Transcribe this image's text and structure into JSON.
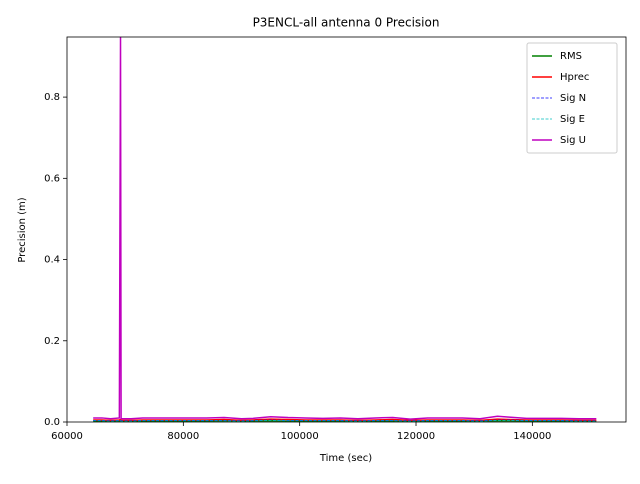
{
  "chart_data": {
    "type": "line",
    "title": "P3ENCL-all antenna 0 Precision",
    "x_label": "Time (sec)",
    "y_label": "Precision (m)",
    "x": [
      64500,
      66000,
      67500,
      69000,
      69200,
      69300,
      71000,
      73000,
      76000,
      80000,
      84000,
      87000,
      90000,
      92000,
      95000,
      98000,
      101000,
      104000,
      107000,
      110000,
      113000,
      116000,
      119000,
      122000,
      125000,
      128000,
      131000,
      134000,
      136000,
      139000,
      142000,
      145000,
      148000,
      151000
    ],
    "series": [
      {
        "name": "RMS",
        "color": "#008000",
        "linestyle": "solid",
        "values": [
          0.002,
          0.002,
          0.001,
          0.002,
          0.003,
          0.002,
          0.002,
          0.002,
          0.002,
          0.002,
          0.002,
          0.003,
          0.002,
          0.002,
          0.003,
          0.002,
          0.002,
          0.002,
          0.002,
          0.001,
          0.002,
          0.002,
          0.001,
          0.002,
          0.002,
          0.002,
          0.002,
          0.003,
          0.003,
          0.002,
          0.002,
          0.002,
          0.002,
          0.002
        ]
      },
      {
        "name": "Hprec",
        "color": "#ff0000",
        "linestyle": "solid",
        "values": [
          0.005,
          0.005,
          0.004,
          0.005,
          0.006,
          0.004,
          0.004,
          0.005,
          0.005,
          0.005,
          0.005,
          0.006,
          0.004,
          0.005,
          0.007,
          0.006,
          0.005,
          0.005,
          0.005,
          0.004,
          0.005,
          0.006,
          0.004,
          0.005,
          0.005,
          0.005,
          0.004,
          0.007,
          0.006,
          0.005,
          0.005,
          0.005,
          0.004,
          0.004
        ]
      },
      {
        "name": "Sig N",
        "color": "#0000ff",
        "linestyle": "dashed",
        "values": [
          0.004,
          0.004,
          0.003,
          0.004,
          0.004,
          0.003,
          0.003,
          0.004,
          0.004,
          0.004,
          0.004,
          0.004,
          0.003,
          0.004,
          0.005,
          0.004,
          0.004,
          0.004,
          0.004,
          0.003,
          0.004,
          0.004,
          0.003,
          0.004,
          0.004,
          0.004,
          0.003,
          0.005,
          0.005,
          0.004,
          0.004,
          0.004,
          0.003,
          0.003
        ]
      },
      {
        "name": "Sig E",
        "color": "#00bfbf",
        "linestyle": "dashed",
        "values": [
          0.003,
          0.003,
          0.002,
          0.003,
          0.003,
          0.002,
          0.002,
          0.003,
          0.003,
          0.003,
          0.003,
          0.003,
          0.002,
          0.003,
          0.004,
          0.003,
          0.003,
          0.003,
          0.003,
          0.002,
          0.003,
          0.003,
          0.002,
          0.003,
          0.003,
          0.003,
          0.002,
          0.004,
          0.004,
          0.003,
          0.003,
          0.003,
          0.002,
          0.002
        ]
      },
      {
        "name": "Sig U",
        "color": "#bf00bf",
        "linestyle": "solid",
        "values": [
          0.01,
          0.01,
          0.008,
          0.01,
          0.95,
          0.008,
          0.008,
          0.01,
          0.01,
          0.01,
          0.01,
          0.011,
          0.008,
          0.009,
          0.013,
          0.011,
          0.01,
          0.009,
          0.01,
          0.008,
          0.01,
          0.011,
          0.007,
          0.01,
          0.01,
          0.01,
          0.008,
          0.014,
          0.012,
          0.009,
          0.009,
          0.009,
          0.008,
          0.008
        ]
      }
    ],
    "xlim": [
      60000,
      156100
    ],
    "xticks": [
      60000,
      80000,
      100000,
      120000,
      140000
    ],
    "ylim": [
      0,
      0.948
    ],
    "yticks": [
      {
        "value": 0,
        "label": "0.0"
      },
      {
        "value": 0.2,
        "label": "0.2"
      },
      {
        "value": 0.4,
        "label": "0.4"
      },
      {
        "value": 0.6,
        "label": "0.6"
      },
      {
        "value": 0.8,
        "label": "0.8"
      }
    ],
    "grid": false,
    "legend": "upper right"
  }
}
